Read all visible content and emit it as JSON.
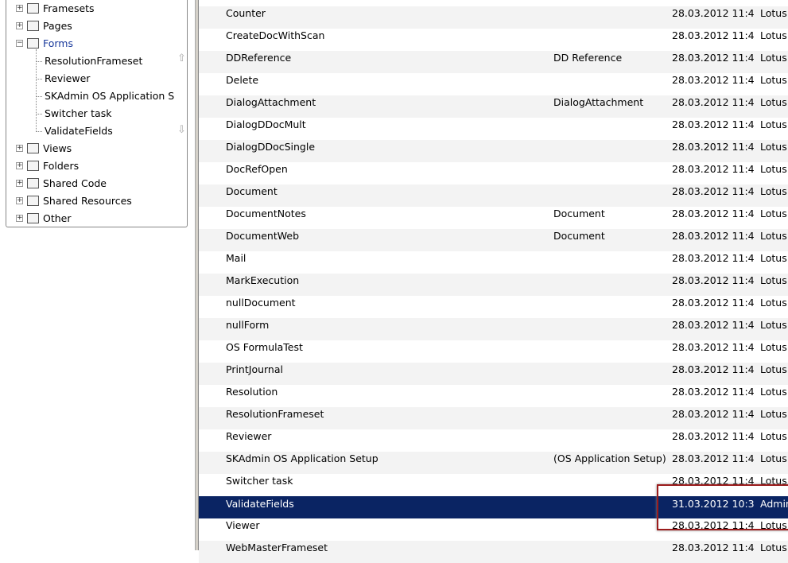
{
  "tree": {
    "items": [
      {
        "label": "Framesets",
        "icon": "frameset-icon",
        "expander": "+"
      },
      {
        "label": "Pages",
        "icon": "page-icon",
        "expander": "+"
      },
      {
        "label": "Forms",
        "icon": "form-icon",
        "expander": "-",
        "selected": true
      }
    ],
    "children": [
      "ResolutionFrameset",
      "Reviewer",
      "SKAdmin OS Application S",
      "Switcher task",
      "ValidateFields"
    ],
    "items_after": [
      {
        "label": "Views",
        "icon": "view-icon",
        "expander": "+"
      },
      {
        "label": "Folders",
        "icon": "folder-icon",
        "expander": "+"
      },
      {
        "label": "Shared Code",
        "icon": "shared-code-icon",
        "expander": "+"
      },
      {
        "label": "Shared Resources",
        "icon": "shared-resources-icon",
        "expander": "+"
      },
      {
        "label": "Other",
        "icon": "other-icon",
        "expander": "+"
      }
    ],
    "scroll_up": "⇧",
    "scroll_down": "⇩"
  },
  "list": {
    "rows": [
      [
        "Counter",
        "",
        "28.03.2012 11:4",
        "Lotus"
      ],
      [
        "CreateDocWithScan",
        "",
        "28.03.2012 11:4",
        "Lotus"
      ],
      [
        "DDReference",
        "DD Reference",
        "28.03.2012 11:4",
        "Lotus"
      ],
      [
        "Delete",
        "",
        "28.03.2012 11:4",
        "Lotus"
      ],
      [
        "DialogAttachment",
        "DialogAttachment",
        "28.03.2012 11:4",
        "Lotus"
      ],
      [
        "DialogDDocMult",
        "",
        "28.03.2012 11:4",
        "Lotus"
      ],
      [
        "DialogDDocSingle",
        "",
        "28.03.2012 11:4",
        "Lotus"
      ],
      [
        "DocRefOpen",
        "",
        "28.03.2012 11:4",
        "Lotus"
      ],
      [
        "Document",
        "",
        "28.03.2012 11:4",
        "Lotus"
      ],
      [
        "DocumentNotes",
        "Document",
        "28.03.2012 11:4",
        "Lotus"
      ],
      [
        "DocumentWeb",
        "Document",
        "28.03.2012 11:4",
        "Lotus"
      ],
      [
        "Mail",
        "",
        "28.03.2012 11:4",
        "Lotus"
      ],
      [
        "MarkExecution",
        "",
        "28.03.2012 11:4",
        "Lotus"
      ],
      [
        "nullDocument",
        "",
        "28.03.2012 11:4",
        "Lotus"
      ],
      [
        "nullForm",
        "",
        "28.03.2012 11:4",
        "Lotus"
      ],
      [
        "OS FormulaTest",
        "",
        "28.03.2012 11:4",
        "Lotus"
      ],
      [
        "PrintJournal",
        "",
        "28.03.2012 11:4",
        "Lotus"
      ],
      [
        "Resolution",
        "",
        "28.03.2012 11:4",
        "Lotus"
      ],
      [
        "ResolutionFrameset",
        "",
        "28.03.2012 11:4",
        "Lotus"
      ],
      [
        "Reviewer",
        "",
        "28.03.2012 11:4",
        "Lotus"
      ],
      [
        "SKAdmin OS Application Setup",
        "(OS Application Setup)",
        "28.03.2012 11:4",
        "Lotus"
      ],
      [
        "Switcher task",
        "",
        "28.03.2012 11:4",
        "Lotus"
      ],
      [
        "ValidateFields",
        "",
        "31.03.2012 10:3",
        "Admin"
      ],
      [
        "Viewer",
        "",
        "28.03.2012 11:4",
        "Lotus"
      ],
      [
        "WebMasterFrameset",
        "",
        "28.03.2012 11:4",
        "Lotus"
      ]
    ],
    "selected_index": 22
  },
  "colors": {
    "selection": "#0a2463",
    "highlight_box": "#9b1c1c",
    "forms_label": "#1a3a9c"
  }
}
